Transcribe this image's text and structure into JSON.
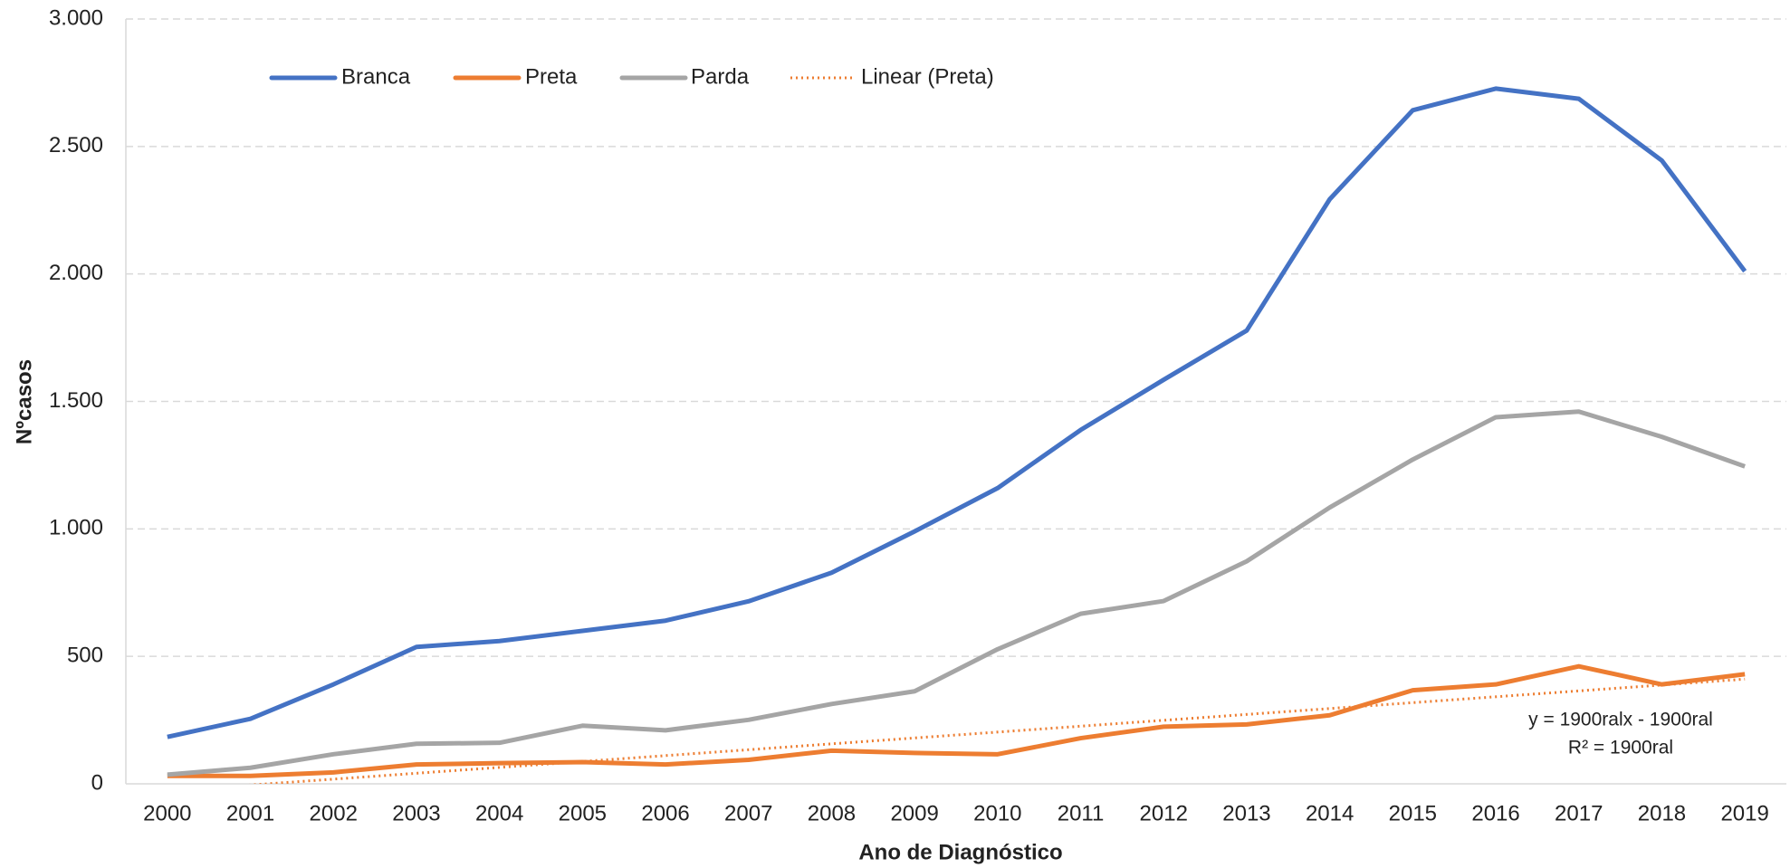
{
  "chart_data": {
    "type": "line",
    "categories": [
      "2000",
      "2001",
      "2002",
      "2003",
      "2004",
      "2005",
      "2006",
      "2007",
      "2008",
      "2009",
      "2010",
      "2011",
      "2012",
      "2013",
      "2014",
      "2015",
      "2016",
      "2017",
      "2018",
      "2019"
    ],
    "series": [
      {
        "name": "Branca",
        "color": "#4472c4",
        "values": [
          184,
          255,
          390,
          537,
          560,
          600,
          640,
          716,
          828,
          990,
          1160,
          1388,
          1585,
          1778,
          2293,
          2642,
          2727,
          2687,
          2445,
          2011
        ]
      },
      {
        "name": "Preta",
        "color": "#ed7d31",
        "values": [
          31,
          31,
          45,
          76,
          81,
          85,
          76,
          94,
          130,
          121,
          116,
          179,
          224,
          233,
          269,
          367,
          390,
          461,
          390,
          430
        ]
      },
      {
        "name": "Parda",
        "color": "#a5a5a5",
        "values": [
          36,
          63,
          116,
          157,
          161,
          228,
          210,
          251,
          313,
          363,
          528,
          667,
          717,
          873,
          1084,
          1272,
          1438,
          1460,
          1361,
          1245
        ]
      }
    ],
    "trendline": {
      "name": "Linear (Preta)",
      "series": 1,
      "type": "linear",
      "color": "#ed7d31",
      "style": "dotted",
      "equation": "y = 1900ralx - 1900ral",
      "r_squared": "R² = 1900ral"
    },
    "x_label": "Ano de Diagnóstico",
    "y_label": "Nºcasos",
    "ylim": [
      0,
      3000
    ],
    "yticks": [
      0,
      500,
      {
        "value": 1000,
        "label": "1.000"
      },
      {
        "value": 1500,
        "label": "1.500"
      },
      {
        "value": 2000,
        "label": "2.000"
      },
      {
        "value": 2500,
        "label": "2.500"
      },
      {
        "value": 3000,
        "label": "3.000"
      }
    ],
    "grid": true,
    "legend": "top-left"
  }
}
